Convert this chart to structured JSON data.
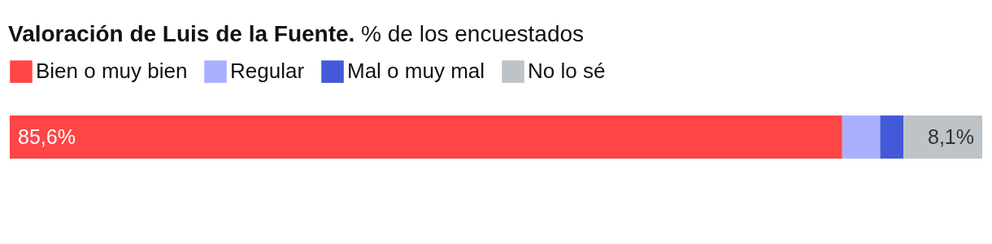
{
  "chart_data": {
    "type": "bar",
    "title": "Valoración de Luis de la Fuente.",
    "subtitle": "% de los encuestados",
    "orientation": "horizontal",
    "stacked": true,
    "categories": [
      null
    ],
    "xlim": [
      0,
      100
    ],
    "legend": "top left",
    "series": [
      {
        "name": "Bien o muy bien",
        "color": "#ff4545",
        "values": [
          85.6
        ],
        "value_labels": [
          "85,6%"
        ]
      },
      {
        "name": "Regular",
        "color": "#aab0ff",
        "values": [
          3.9
        ],
        "value_labels": [
          null
        ]
      },
      {
        "name": "Mal o muy mal",
        "color": "#4459d9",
        "values": [
          2.4
        ],
        "value_labels": [
          null
        ]
      },
      {
        "name": "No lo sé",
        "color": "#bec3c8",
        "values": [
          8.1
        ],
        "value_labels": [
          "8,1%"
        ]
      }
    ]
  }
}
